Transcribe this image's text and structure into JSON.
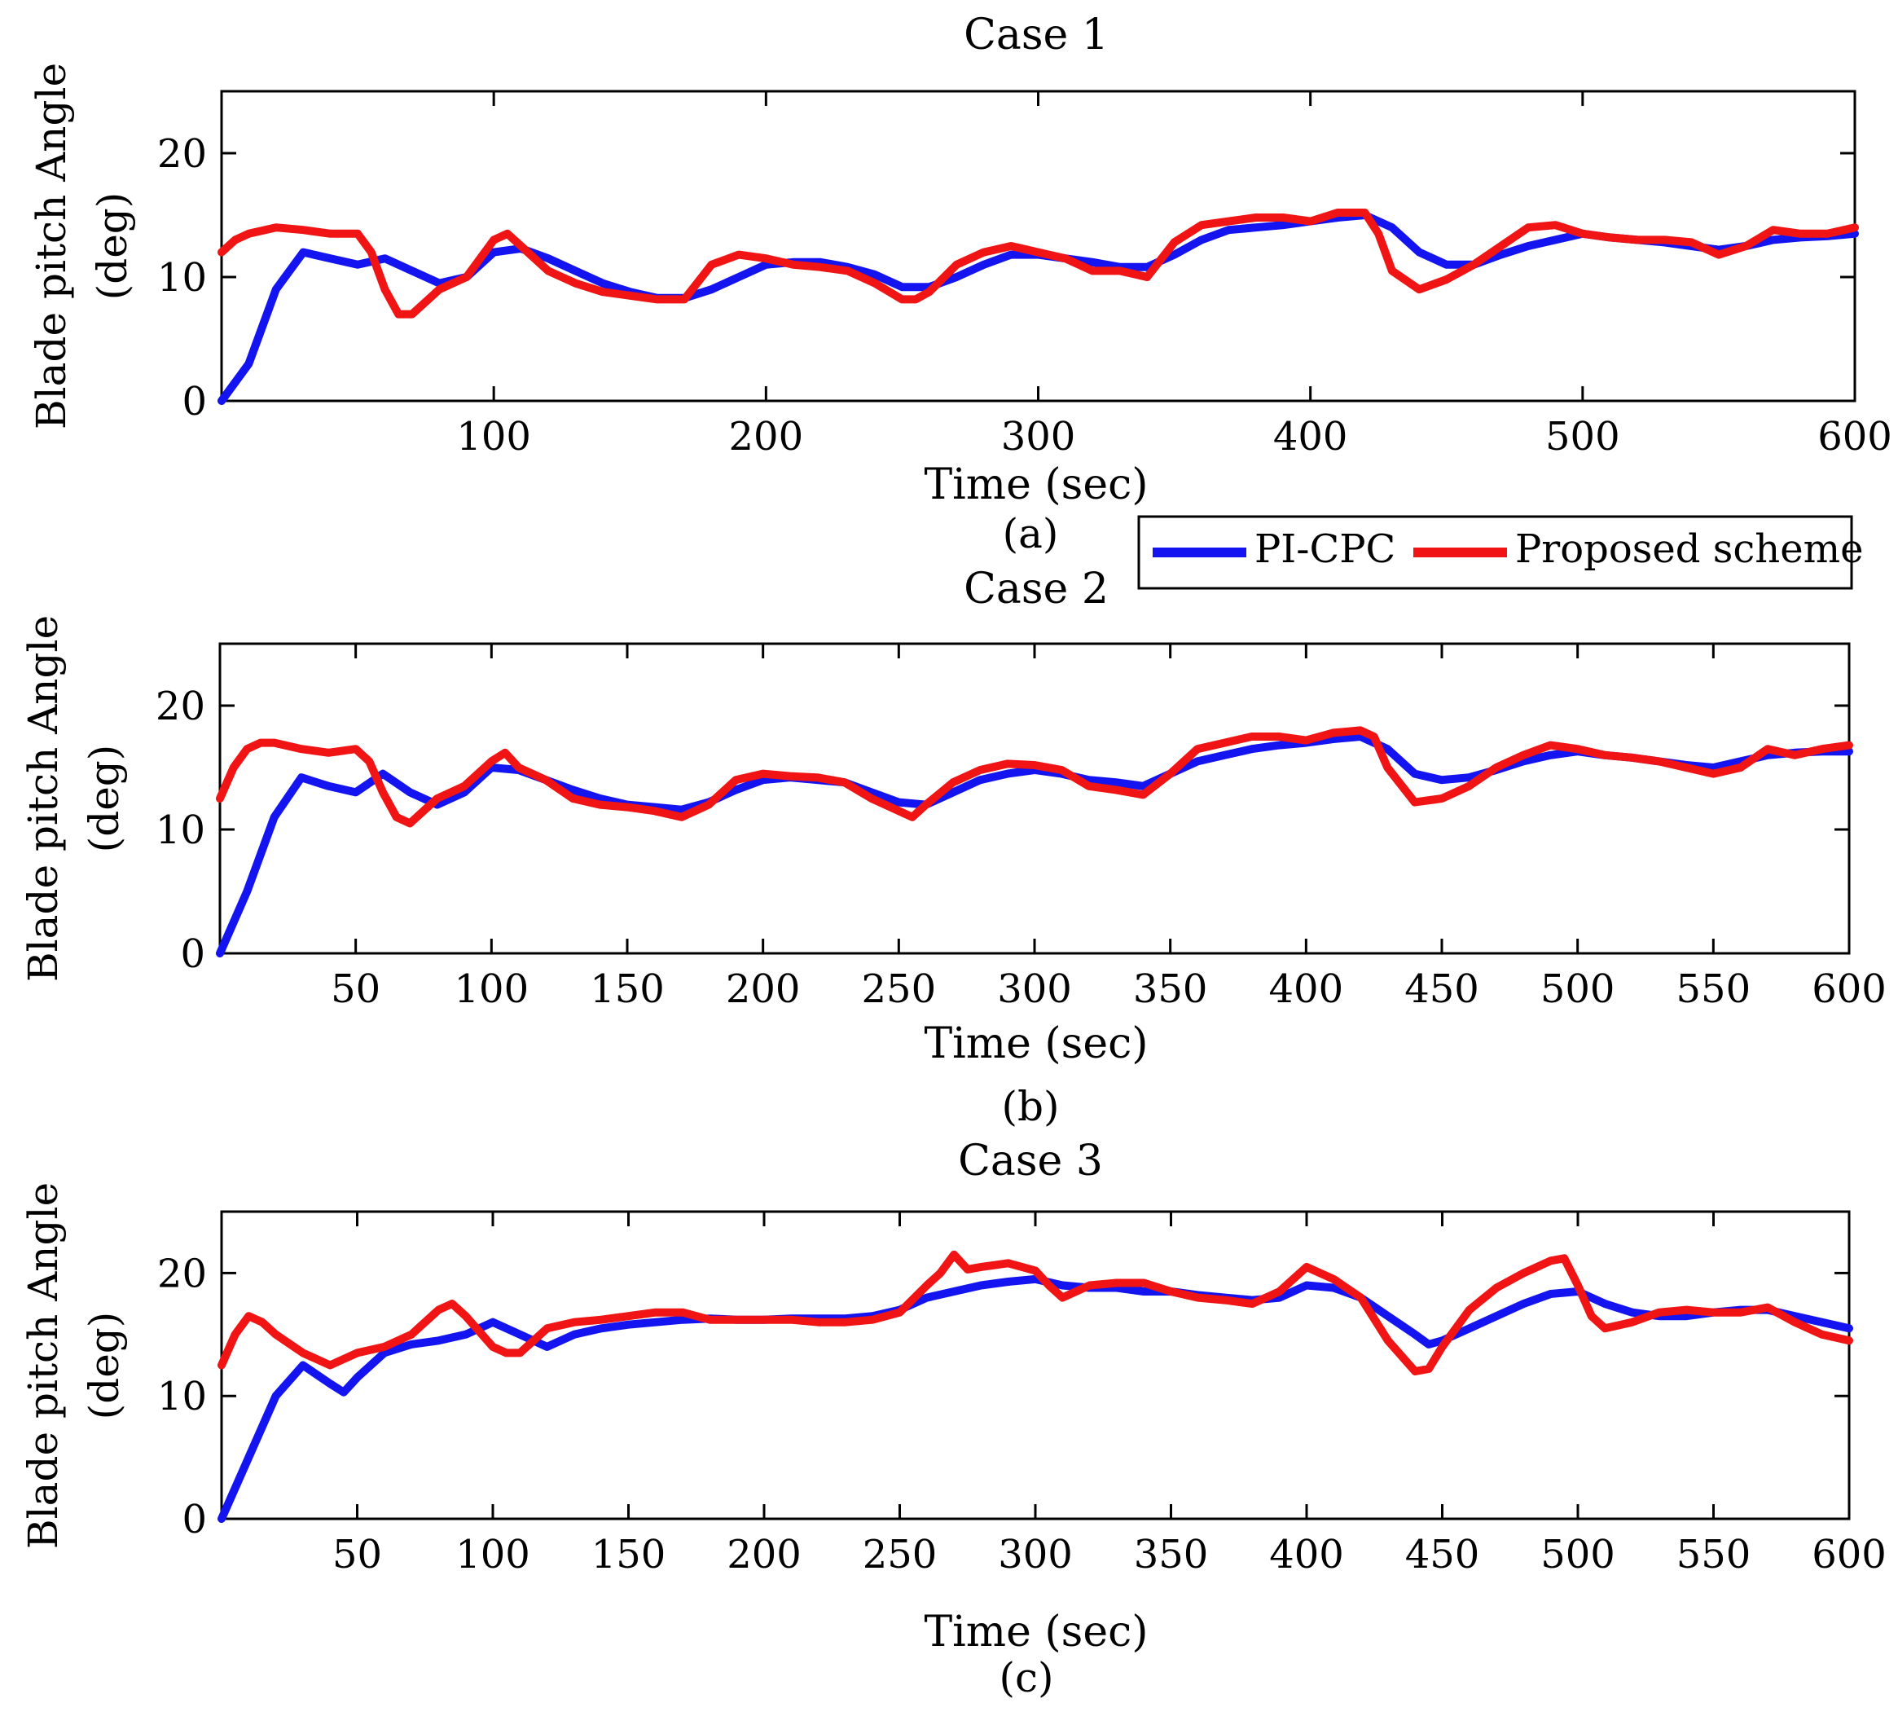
{
  "colors": {
    "pi_cpc": "#1414f0",
    "proposed": "#f01414",
    "axis": "#000000",
    "background": "#ffffff"
  },
  "legend": {
    "pi_cpc": "PI-CPC",
    "proposed": "Proposed scheme"
  },
  "chart_data": [
    {
      "type": "line",
      "title": "Case 1",
      "caption": "(a)",
      "xlabel": "Time (sec)",
      "ylabel": [
        "Blade pitch Angle",
        "(deg)"
      ],
      "xlim": [
        0,
        600
      ],
      "ylim": [
        0,
        25
      ],
      "xticks": [
        100,
        200,
        300,
        400,
        500,
        600
      ],
      "yticks": [
        0,
        10,
        20
      ],
      "series": [
        {
          "name": "PI-CPC",
          "x": [
            0,
            10,
            20,
            30,
            40,
            50,
            60,
            70,
            80,
            90,
            100,
            110,
            120,
            130,
            140,
            150,
            160,
            170,
            180,
            190,
            200,
            210,
            220,
            230,
            240,
            250,
            260,
            270,
            280,
            290,
            300,
            310,
            320,
            330,
            340,
            350,
            360,
            370,
            380,
            390,
            400,
            410,
            420,
            430,
            440,
            450,
            460,
            470,
            480,
            490,
            500,
            510,
            520,
            530,
            540,
            550,
            560,
            570,
            580,
            590,
            600
          ],
          "y": [
            0,
            3,
            9,
            12,
            11.5,
            11,
            11.5,
            10.5,
            9.5,
            10,
            12,
            12.3,
            11.5,
            10.5,
            9.5,
            8.8,
            8.3,
            8.3,
            9,
            10,
            11,
            11.2,
            11.2,
            10.8,
            10.2,
            9.2,
            9.2,
            10,
            11,
            11.8,
            11.8,
            11.5,
            11.2,
            10.8,
            10.8,
            11.8,
            13,
            13.8,
            14,
            14.2,
            14.5,
            14.8,
            15,
            14,
            12,
            11,
            11,
            11.8,
            12.5,
            13,
            13.5,
            13.2,
            13,
            12.8,
            12.5,
            12.2,
            12.5,
            13,
            13.2,
            13.3,
            13.5
          ]
        },
        {
          "name": "Proposed scheme",
          "x": [
            0,
            5,
            10,
            20,
            30,
            40,
            50,
            55,
            60,
            65,
            70,
            75,
            80,
            90,
            100,
            105,
            110,
            120,
            130,
            140,
            150,
            160,
            170,
            180,
            190,
            200,
            210,
            220,
            230,
            240,
            250,
            255,
            260,
            270,
            280,
            290,
            300,
            310,
            320,
            330,
            340,
            350,
            360,
            370,
            380,
            390,
            400,
            410,
            420,
            425,
            430,
            440,
            450,
            460,
            470,
            480,
            490,
            500,
            510,
            520,
            530,
            540,
            550,
            560,
            570,
            580,
            590,
            600
          ],
          "y": [
            12,
            13,
            13.5,
            14,
            13.8,
            13.5,
            13.5,
            12,
            9,
            7,
            7,
            8,
            9,
            10,
            13,
            13.5,
            12.5,
            10.5,
            9.5,
            8.8,
            8.5,
            8.2,
            8.2,
            11,
            11.8,
            11.5,
            11,
            10.8,
            10.5,
            9.5,
            8.2,
            8.2,
            8.8,
            11,
            12,
            12.5,
            12,
            11.5,
            10.5,
            10.5,
            10,
            12.8,
            14.2,
            14.5,
            14.8,
            14.8,
            14.5,
            15.2,
            15.2,
            13.5,
            10.5,
            9,
            9.8,
            11,
            12.5,
            14,
            14.2,
            13.5,
            13.2,
            13,
            13,
            12.8,
            11.8,
            12.5,
            13.8,
            13.5,
            13.5,
            14
          ]
        }
      ]
    },
    {
      "type": "line",
      "title": "Case 2",
      "caption": "(b)",
      "xlabel": "Time (sec)",
      "ylabel": [
        "Blade pitch Angle",
        "(deg)"
      ],
      "xlim": [
        0,
        600
      ],
      "ylim": [
        0,
        25
      ],
      "xticks": [
        50,
        100,
        150,
        200,
        250,
        300,
        350,
        400,
        450,
        500,
        550,
        600
      ],
      "yticks": [
        0,
        10,
        20
      ],
      "series": [
        {
          "name": "PI-CPC",
          "x": [
            0,
            10,
            20,
            30,
            40,
            50,
            60,
            70,
            80,
            90,
            100,
            110,
            120,
            130,
            140,
            150,
            160,
            170,
            180,
            190,
            200,
            210,
            220,
            230,
            240,
            250,
            260,
            270,
            280,
            290,
            300,
            310,
            320,
            330,
            340,
            350,
            360,
            370,
            380,
            390,
            400,
            410,
            420,
            430,
            440,
            450,
            460,
            470,
            480,
            490,
            500,
            510,
            520,
            530,
            540,
            550,
            560,
            570,
            580,
            590,
            600
          ],
          "y": [
            0,
            5,
            11,
            14.2,
            13.5,
            13,
            14.5,
            13,
            12,
            13,
            15,
            14.8,
            14,
            13.2,
            12.5,
            12,
            11.8,
            11.6,
            12.2,
            13.2,
            14,
            14.2,
            14,
            13.8,
            13,
            12.2,
            12,
            13,
            14,
            14.5,
            14.8,
            14.5,
            14,
            13.8,
            13.5,
            14.5,
            15.5,
            16,
            16.5,
            16.8,
            17,
            17.3,
            17.5,
            16.5,
            14.5,
            14,
            14.2,
            14.8,
            15.5,
            16,
            16.3,
            16,
            15.8,
            15.5,
            15.2,
            15,
            15.5,
            16,
            16.2,
            16.3,
            16.3
          ]
        },
        {
          "name": "Proposed scheme",
          "x": [
            0,
            5,
            10,
            15,
            20,
            30,
            40,
            50,
            55,
            60,
            65,
            70,
            75,
            80,
            90,
            100,
            105,
            110,
            120,
            130,
            140,
            150,
            160,
            170,
            180,
            190,
            200,
            210,
            220,
            230,
            240,
            250,
            255,
            260,
            270,
            280,
            290,
            300,
            310,
            320,
            330,
            340,
            350,
            360,
            370,
            380,
            390,
            400,
            410,
            420,
            425,
            430,
            440,
            450,
            460,
            470,
            480,
            490,
            500,
            510,
            520,
            530,
            540,
            550,
            560,
            570,
            580,
            590,
            600
          ],
          "y": [
            12.5,
            15,
            16.5,
            17,
            17,
            16.5,
            16.2,
            16.5,
            15.5,
            13,
            11,
            10.5,
            11.5,
            12.5,
            13.5,
            15.5,
            16.2,
            15,
            14,
            12.5,
            12,
            11.8,
            11.5,
            11,
            12,
            14,
            14.5,
            14.3,
            14.2,
            13.8,
            12.5,
            11.5,
            11,
            12,
            13.8,
            14.8,
            15.3,
            15.2,
            14.8,
            13.5,
            13.2,
            12.8,
            14.5,
            16.5,
            17,
            17.5,
            17.5,
            17.2,
            17.8,
            18,
            17.5,
            15,
            12.2,
            12.5,
            13.5,
            15,
            16,
            16.8,
            16.5,
            16,
            15.8,
            15.5,
            15,
            14.5,
            15,
            16.5,
            16,
            16.5,
            16.8
          ]
        }
      ]
    },
    {
      "type": "line",
      "title": "Case 3",
      "caption": "(c)",
      "xlabel": "Time (sec)",
      "ylabel": [
        "Blade pitch Angle",
        "(deg)"
      ],
      "xlim": [
        0,
        600
      ],
      "ylim": [
        0,
        25
      ],
      "xticks": [
        50,
        100,
        150,
        200,
        250,
        300,
        350,
        400,
        450,
        500,
        550,
        600
      ],
      "yticks": [
        0,
        10,
        20
      ],
      "series": [
        {
          "name": "PI-CPC",
          "x": [
            0,
            10,
            20,
            30,
            40,
            45,
            50,
            60,
            70,
            80,
            90,
            100,
            110,
            120,
            130,
            140,
            150,
            160,
            170,
            180,
            190,
            200,
            210,
            220,
            230,
            240,
            250,
            260,
            270,
            280,
            290,
            300,
            310,
            320,
            330,
            340,
            350,
            360,
            370,
            380,
            390,
            400,
            410,
            420,
            430,
            440,
            445,
            450,
            460,
            470,
            480,
            490,
            500,
            510,
            520,
            530,
            540,
            550,
            560,
            570,
            580,
            590,
            600
          ],
          "y": [
            0,
            5,
            10,
            12.5,
            11,
            10.3,
            11.5,
            13.5,
            14.2,
            14.5,
            15,
            16,
            15,
            14,
            15,
            15.5,
            15.8,
            16,
            16.2,
            16.3,
            16.2,
            16.2,
            16.3,
            16.3,
            16.3,
            16.5,
            17,
            18,
            18.5,
            19,
            19.3,
            19.5,
            19,
            18.8,
            18.8,
            18.5,
            18.5,
            18.2,
            18,
            17.8,
            18,
            19,
            18.8,
            18,
            16.5,
            15,
            14.2,
            14.5,
            15.5,
            16.5,
            17.5,
            18.3,
            18.5,
            17.5,
            16.8,
            16.5,
            16.5,
            16.8,
            17,
            17,
            16.5,
            16,
            15.5
          ]
        },
        {
          "name": "Proposed scheme",
          "x": [
            0,
            5,
            10,
            15,
            20,
            30,
            40,
            50,
            60,
            70,
            80,
            85,
            90,
            100,
            105,
            110,
            120,
            130,
            140,
            150,
            160,
            170,
            180,
            190,
            200,
            210,
            220,
            230,
            240,
            250,
            260,
            265,
            270,
            275,
            280,
            290,
            300,
            305,
            310,
            320,
            330,
            340,
            350,
            360,
            370,
            380,
            390,
            400,
            410,
            420,
            430,
            440,
            445,
            450,
            460,
            470,
            480,
            490,
            495,
            500,
            505,
            510,
            520,
            530,
            540,
            550,
            560,
            570,
            580,
            590,
            600
          ],
          "y": [
            12.5,
            15,
            16.5,
            16,
            15,
            13.5,
            12.5,
            13.5,
            14,
            15,
            17,
            17.5,
            16.5,
            14,
            13.5,
            13.5,
            15.5,
            16,
            16.2,
            16.5,
            16.8,
            16.8,
            16.2,
            16.2,
            16.2,
            16.2,
            16,
            16,
            16.2,
            16.8,
            19,
            20,
            21.5,
            20.3,
            20.5,
            20.8,
            20.2,
            19,
            18,
            19,
            19.2,
            19.2,
            18.5,
            18,
            17.8,
            17.5,
            18.5,
            20.5,
            19.5,
            18,
            14.5,
            12,
            12.2,
            14,
            17,
            18.8,
            20,
            21,
            21.2,
            19,
            16.5,
            15.5,
            16,
            16.8,
            17,
            16.8,
            16.8,
            17.2,
            16,
            15,
            14.5
          ]
        }
      ]
    }
  ]
}
